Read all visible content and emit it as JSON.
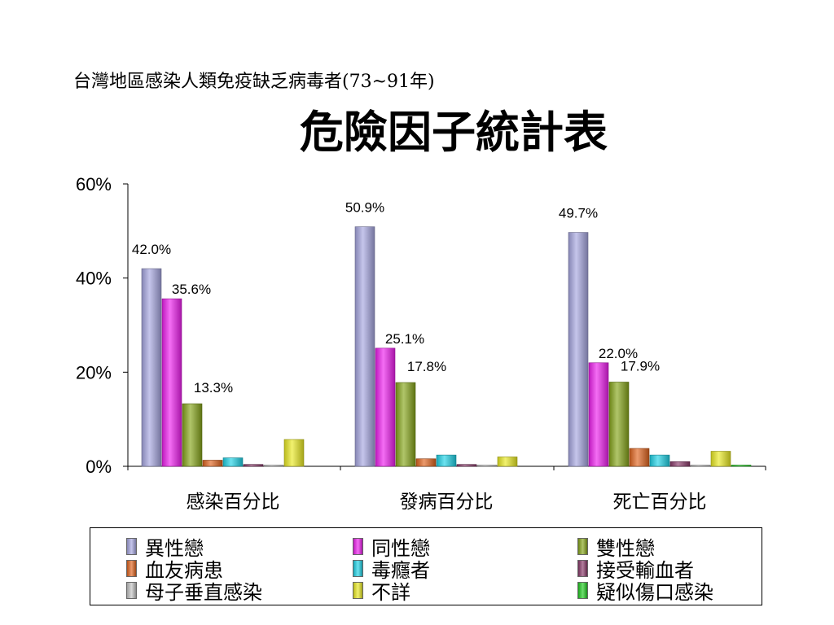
{
  "slide": {
    "subtitle": "台灣地區感染人類免疫缺乏病毒者(73~91年)",
    "title": "危險因子統計表"
  },
  "chart_data": {
    "type": "bar",
    "categories": [
      "感染百分比",
      "發病百分比",
      "死亡百分比"
    ],
    "ylim": [
      0,
      60
    ],
    "yticks": [
      0,
      20,
      40,
      60
    ],
    "ytick_labels": [
      "0%",
      "20%",
      "40%",
      "60%"
    ],
    "xlabel": "",
    "ylabel": "",
    "legend_position": "bottom",
    "series": [
      {
        "name": "異性戀",
        "color": "#a6a6e0",
        "values": [
          42.0,
          50.9,
          49.7
        ],
        "labels": [
          "42.0%",
          "50.9%",
          "49.7%"
        ]
      },
      {
        "name": "同性戀",
        "color": "#ee1eee",
        "values": [
          35.6,
          25.1,
          22.0
        ],
        "labels": [
          "35.6%",
          "25.1%",
          "22.0%"
        ]
      },
      {
        "name": "雙性戀",
        "color": "#86a51a",
        "values": [
          13.3,
          17.8,
          17.9
        ],
        "labels": [
          "13.3%",
          "17.8%",
          "17.9%"
        ]
      },
      {
        "name": "血友病患",
        "color": "#e0641e",
        "values": [
          1.3,
          1.6,
          3.8
        ],
        "labels": [
          "",
          "",
          ""
        ]
      },
      {
        "name": "毒癮者",
        "color": "#1ed2e6",
        "values": [
          1.8,
          2.4,
          2.4
        ],
        "labels": [
          "",
          "",
          ""
        ]
      },
      {
        "name": "接受輸血者",
        "color": "#8a3a6a",
        "values": [
          0.4,
          0.4,
          1.0
        ],
        "labels": [
          "",
          "",
          ""
        ]
      },
      {
        "name": "母子垂直感染",
        "color": "#c4c4c4",
        "values": [
          0.1,
          0.1,
          0.1
        ],
        "labels": [
          "",
          "",
          ""
        ]
      },
      {
        "name": "不詳",
        "color": "#eaea22",
        "values": [
          5.7,
          2.0,
          3.2
        ],
        "labels": [
          "",
          "",
          ""
        ]
      },
      {
        "name": "疑似傷口感染",
        "color": "#22cc22",
        "values": [
          0.0,
          0.0,
          0.2
        ],
        "labels": [
          "",
          "",
          ""
        ]
      }
    ]
  }
}
